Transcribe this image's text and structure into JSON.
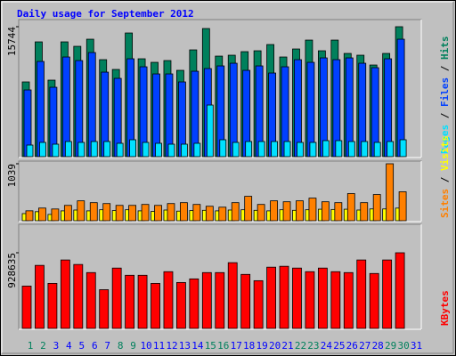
{
  "legend_separator": " / ",
  "chart_data": [
    {
      "type": "bar",
      "title": "Daily usage for September 2012",
      "ylim": [
        0,
        15744
      ],
      "yticks": [
        15744
      ],
      "series": [
        {
          "name": "Hits",
          "color": "#00805c",
          "values": [
            9055,
            13906,
            9271,
            13906,
            13367,
            14230,
            11750,
            10564,
            14984,
            11858,
            11427,
            11642,
            10457,
            12936,
            15523,
            12181,
            12289,
            12720,
            12828,
            13583,
            12074,
            13044,
            14122,
            12828,
            14122,
            12505,
            12289,
            11103,
            12505,
            15744,
            null
          ]
        },
        {
          "name": "Files",
          "color": "#0040ff",
          "values": [
            8085,
            11535,
            8408,
            12074,
            11642,
            12613,
            10241,
            9486,
            11858,
            10888,
            10025,
            10025,
            9055,
            10349,
            10672,
            10996,
            11319,
            10457,
            10996,
            10133,
            10888,
            11750,
            11427,
            11966,
            11750,
            11966,
            11319,
            10780,
            11858,
            14230,
            null
          ]
        },
        {
          "name": "Pages",
          "color": "#00e0ff",
          "values": [
            1402,
            1725,
            1509,
            1833,
            1725,
            1833,
            1833,
            1617,
            2048,
            1725,
            1617,
            1509,
            1509,
            1617,
            6252,
            2048,
            1725,
            1833,
            1833,
            1833,
            1833,
            1725,
            1725,
            1940,
            1940,
            1833,
            1833,
            1725,
            1833,
            2048,
            null
          ]
        }
      ]
    },
    {
      "type": "bar",
      "ylim": [
        0,
        1039
      ],
      "yticks": [
        1039
      ],
      "series": [
        {
          "name": "Visits",
          "color": "#ffff00",
          "values": [
            130,
            165,
            115,
            180,
            195,
            180,
            200,
            185,
            200,
            180,
            170,
            195,
            175,
            185,
            190,
            180,
            195,
            200,
            190,
            180,
            200,
            190,
            200,
            210,
            205,
            210,
            195,
            215,
            215,
            230,
            null
          ]
        },
        {
          "name": "Sites",
          "color": "#ff8000",
          "values": [
            181,
            231,
            214,
            280,
            363,
            330,
            313,
            280,
            280,
            297,
            280,
            313,
            330,
            297,
            264,
            247,
            330,
            445,
            297,
            363,
            346,
            363,
            412,
            346,
            330,
            495,
            330,
            478,
            1039,
            528,
            null
          ]
        }
      ]
    },
    {
      "type": "bar",
      "ylim": [
        0,
        928635
      ],
      "yticks": [
        928635
      ],
      "categories": [
        "1",
        "2",
        "3",
        "4",
        "5",
        "6",
        "7",
        "8",
        "9",
        "10",
        "11",
        "12",
        "13",
        "14",
        "15",
        "16",
        "17",
        "18",
        "19",
        "20",
        "21",
        "22",
        "23",
        "24",
        "25",
        "26",
        "27",
        "28",
        "29",
        "30",
        "31"
      ],
      "category_colors": [
        "#00805c",
        "#00805c",
        "#0000ff",
        "#0000ff",
        "#0000ff",
        "#0000ff",
        "#0000ff",
        "#00805c",
        "#00805c",
        "#0000ff",
        "#0000ff",
        "#0000ff",
        "#0000ff",
        "#0000ff",
        "#00805c",
        "#00805c",
        "#0000ff",
        "#0000ff",
        "#0000ff",
        "#0000ff",
        "#0000ff",
        "#00805c",
        "#00805c",
        "#0000ff",
        "#0000ff",
        "#0000ff",
        "#0000ff",
        "#0000ff",
        "#00805c",
        "#00805c",
        "#0000ff"
      ],
      "series": [
        {
          "name": "KBytes",
          "color": "#ff0000",
          "values": [
            519585,
            773850,
            552750,
            840180,
            784905,
            685410,
            475365,
            740685,
            652245,
            652245,
            552750,
            696465,
            563805,
            608025,
            685410,
            685410,
            807015,
            663300,
            585915,
            751740,
            762795,
            740685,
            696465,
            740685,
            696465,
            685410,
            840180,
            674355,
            840180,
            928635,
            null
          ]
        }
      ]
    }
  ]
}
